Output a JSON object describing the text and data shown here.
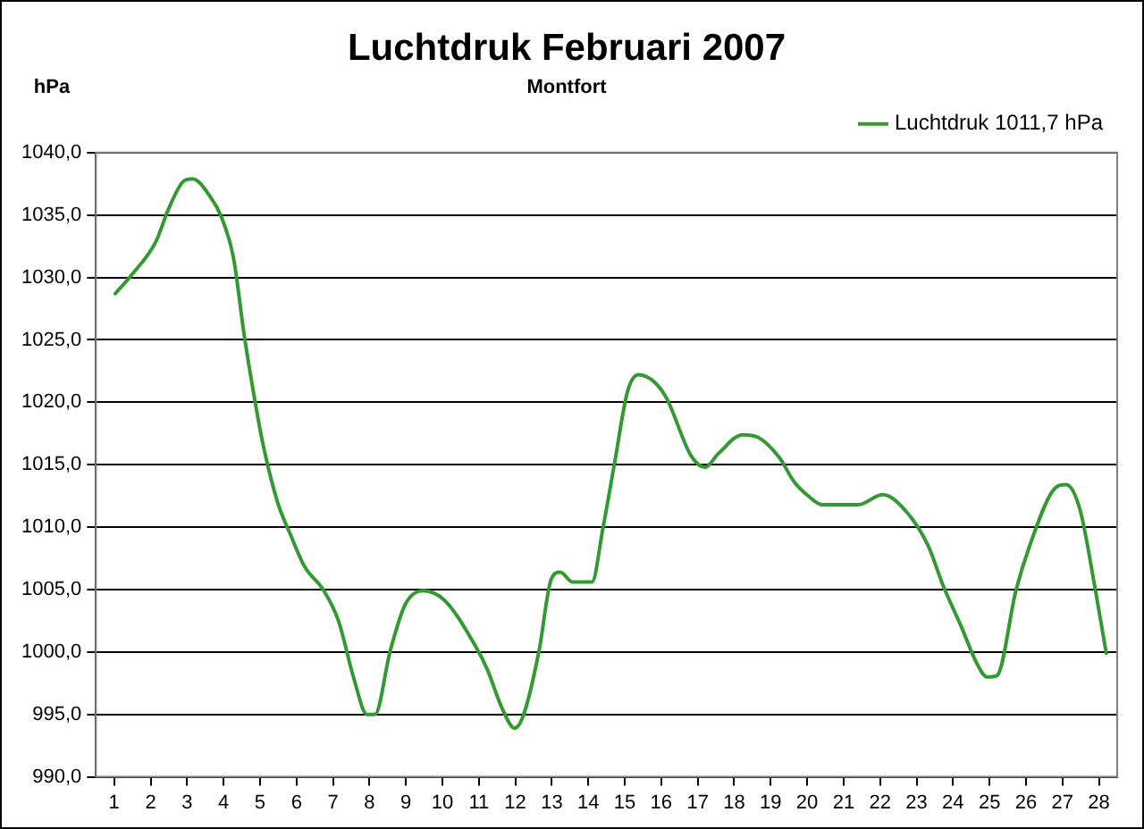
{
  "chart_data": {
    "type": "line",
    "title": "Luchtdruk Februari 2007",
    "subtitle": "Montfort",
    "ylabel": "hPa",
    "xlim": [
      0.5,
      28.5
    ],
    "xticks": [
      1,
      2,
      3,
      4,
      5,
      6,
      7,
      8,
      9,
      10,
      11,
      12,
      13,
      14,
      15,
      16,
      17,
      18,
      19,
      20,
      21,
      22,
      23,
      24,
      25,
      26,
      27,
      28
    ],
    "ylim": [
      990,
      1040
    ],
    "yticks": [
      {
        "value": 990,
        "label": "990,0"
      },
      {
        "value": 995,
        "label": "995,0"
      },
      {
        "value": 1000,
        "label": "1000,0"
      },
      {
        "value": 1005,
        "label": "1005,0"
      },
      {
        "value": 1010,
        "label": "1010,0"
      },
      {
        "value": 1015,
        "label": "1015,0"
      },
      {
        "value": 1020,
        "label": "1020,0"
      },
      {
        "value": 1025,
        "label": "1025,0"
      },
      {
        "value": 1030,
        "label": "1030,0"
      },
      {
        "value": 1035,
        "label": "1035,0"
      },
      {
        "value": 1040,
        "label": "1040,0"
      }
    ],
    "grid": "y",
    "legend": "top right",
    "marker": "none",
    "line_style": "solid",
    "series": [
      {
        "name": "Luchtdruk 1011,7 hPa",
        "color": "#339933",
        "x": [
          1.03,
          1.48,
          2.15,
          2.48,
          2.9,
          3.15,
          3.65,
          3.93,
          4.27,
          4.57,
          4.82,
          5.07,
          5.48,
          5.82,
          6.23,
          6.73,
          7.15,
          7.57,
          7.93,
          8.15,
          8.57,
          8.98,
          9.48,
          10.07,
          10.9,
          11.23,
          11.65,
          11.98,
          12.23,
          12.65,
          12.98,
          13.23,
          13.57,
          14.1,
          14.4,
          14.73,
          15.07,
          15.37,
          15.82,
          16.15,
          16.82,
          17.2,
          17.57,
          18.23,
          18.65,
          19.23,
          19.65,
          20.07,
          20.4,
          21.4,
          22.07,
          22.73,
          23.32,
          23.73,
          24.23,
          24.65,
          24.93,
          25.2,
          25.73,
          26.1,
          26.73,
          27.1,
          27.48,
          27.9,
          28.2
        ],
        "values": [
          1028.7,
          1030.2,
          1032.9,
          1035.4,
          1037.7,
          1037.9,
          1036.4,
          1034.9,
          1031.6,
          1025.3,
          1020.8,
          1016.8,
          1012.0,
          1009.5,
          1006.8,
          1005.0,
          1002.5,
          997.9,
          995.0,
          995.0,
          1000.1,
          1003.8,
          1004.9,
          1004.1,
          1000.5,
          998.6,
          995.4,
          993.9,
          995.0,
          1000.1,
          1005.8,
          1006.4,
          1005.6,
          1005.6,
          1009.9,
          1015.3,
          1020.8,
          1022.2,
          1021.6,
          1020.3,
          1015.7,
          1014.8,
          1015.9,
          1017.4,
          1017.2,
          1015.6,
          1013.6,
          1012.4,
          1011.8,
          1011.8,
          1012.6,
          1011.2,
          1008.5,
          1005.3,
          1002.0,
          999.1,
          998.0,
          998.1,
          1005.0,
          1008.5,
          1012.9,
          1013.4,
          1011.4,
          1005.0,
          999.9
        ]
      }
    ]
  }
}
